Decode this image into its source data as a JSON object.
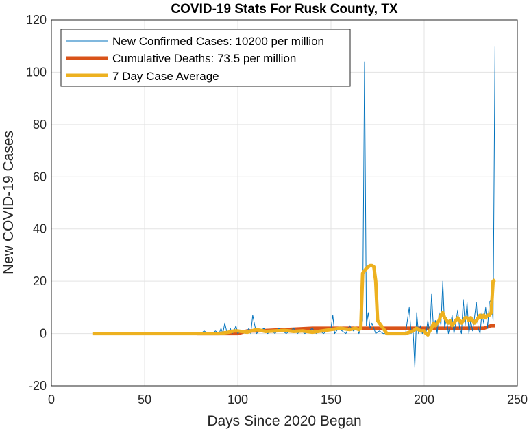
{
  "chart_data": {
    "type": "line",
    "title": "COVID-19 Stats For Rusk County, TX",
    "xlabel": "Days Since 2020 Began",
    "ylabel": "New COVID-19 Cases",
    "xlim": [
      0,
      250
    ],
    "ylim": [
      -20,
      120
    ],
    "xticks": [
      0,
      50,
      100,
      150,
      200,
      250
    ],
    "yticks": [
      -20,
      0,
      20,
      40,
      60,
      80,
      100,
      120
    ],
    "grid": true,
    "legend_position": "top-left",
    "series": [
      {
        "name": "New Confirmed Cases: 10200 per million",
        "color": "#0072BD",
        "style": "thin",
        "x": [
          78,
          80,
          82,
          84,
          86,
          88,
          90,
          91,
          92,
          93,
          94,
          95,
          96,
          97,
          98,
          99,
          100,
          102,
          104,
          106,
          107,
          108,
          110,
          112,
          114,
          116,
          118,
          120,
          122,
          124,
          126,
          128,
          130,
          132,
          134,
          136,
          138,
          140,
          142,
          144,
          146,
          148,
          150,
          151,
          152,
          154,
          156,
          158,
          160,
          162,
          164,
          165,
          166,
          167,
          168,
          169,
          170,
          171,
          172,
          174,
          176,
          178,
          180,
          185,
          190,
          192,
          193,
          194,
          195,
          196,
          197,
          198,
          199,
          200,
          201,
          202,
          203,
          204,
          205,
          206,
          207,
          208,
          209,
          210,
          211,
          212,
          213,
          214,
          215,
          216,
          217,
          218,
          219,
          220,
          221,
          222,
          223,
          224,
          225,
          226,
          227,
          228,
          229,
          230,
          231,
          232,
          233,
          234,
          235,
          236,
          237,
          238
        ],
        "y": [
          0,
          0,
          1,
          0,
          0,
          1,
          0,
          2,
          0,
          4,
          1,
          0,
          2,
          0,
          1,
          3,
          0,
          1,
          0,
          2,
          0,
          7,
          0,
          1,
          2,
          0,
          1,
          0,
          2,
          1,
          0,
          1,
          2,
          0,
          1,
          0,
          1,
          2,
          0,
          1,
          0,
          1,
          2,
          7,
          0,
          2,
          1,
          0,
          3,
          1,
          2,
          0,
          2,
          5,
          104,
          3,
          8,
          2,
          4,
          0,
          1,
          0,
          0,
          0,
          0,
          10,
          0,
          2,
          -13,
          8,
          0,
          3,
          0,
          1,
          0,
          5,
          0,
          15,
          2,
          5,
          0,
          8,
          3,
          20,
          2,
          6,
          0,
          3,
          7,
          0,
          4,
          9,
          2,
          0,
          13,
          3,
          12,
          0,
          5,
          1,
          6,
          12,
          2,
          0,
          8,
          4,
          10,
          2,
          12,
          13,
          5,
          110
        ]
      },
      {
        "name": "Cumulative Deaths: 73.5 per million",
        "color": "#D95319",
        "style": "thick",
        "x": [
          78,
          100,
          105,
          110,
          140,
          150,
          160,
          170,
          200,
          232,
          236,
          238
        ],
        "y": [
          0,
          0,
          1,
          1,
          2,
          2,
          2,
          2,
          2,
          2,
          3,
          3
        ]
      },
      {
        "name": "7 Day Case Average",
        "color": "#EDB120",
        "style": "thick",
        "x": [
          22,
          90,
          95,
          98,
          100,
          105,
          110,
          115,
          120,
          125,
          130,
          135,
          140,
          145,
          150,
          155,
          160,
          163,
          165,
          166,
          167,
          168,
          169,
          170,
          171,
          172,
          173,
          174,
          175,
          178,
          180,
          185,
          190,
          194,
          196,
          198,
          200,
          201,
          202,
          203,
          204,
          205,
          206,
          207,
          208,
          209,
          210,
          211,
          212,
          213,
          214,
          215,
          216,
          217,
          218,
          219,
          220,
          221,
          222,
          223,
          224,
          225,
          226,
          227,
          228,
          229,
          230,
          231,
          232,
          233,
          234,
          235,
          236,
          237,
          238
        ],
        "y": [
          0,
          0,
          0.5,
          1,
          1,
          0.5,
          1.5,
          0.8,
          1,
          1.2,
          0.8,
          1,
          0.5,
          1,
          1.5,
          2,
          1.5,
          2,
          1.5,
          2,
          23,
          24,
          25,
          25.5,
          26,
          26,
          25.5,
          20,
          5,
          2,
          0,
          0,
          0,
          1,
          2,
          1,
          1,
          0,
          -0.5,
          1,
          2,
          4,
          3,
          4,
          5,
          7,
          8,
          6,
          5,
          4,
          5,
          3,
          4,
          5,
          6,
          5,
          4,
          5,
          6,
          6,
          5,
          6,
          5,
          4,
          5,
          6,
          7,
          6,
          7,
          6,
          7,
          7,
          8,
          20,
          20.5
        ]
      }
    ]
  }
}
